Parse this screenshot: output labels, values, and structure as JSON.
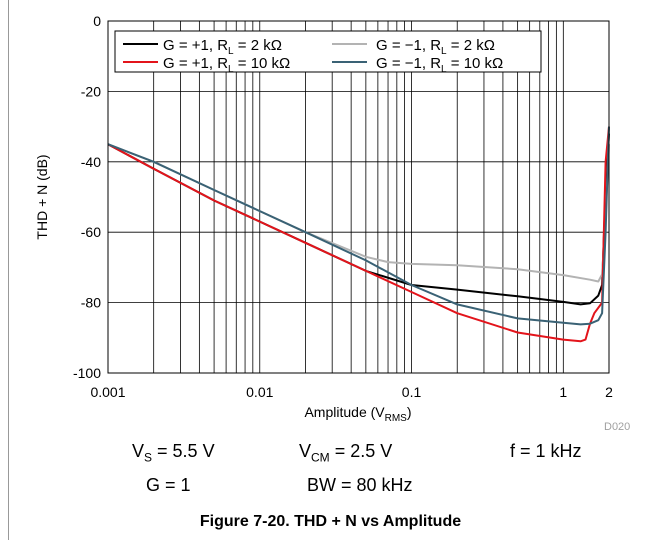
{
  "chart_data": {
    "type": "line",
    "title": "",
    "xlabel": {
      "main": "Amplitude (V",
      "sub": "RMS",
      "close": ")"
    },
    "ylabel": "THD + N (dB)",
    "x_scale": "log",
    "xlim": [
      0.001,
      2
    ],
    "ylim": [
      -100,
      0
    ],
    "x_ticks": [
      {
        "value": 0.001,
        "label": "0.001"
      },
      {
        "value": 0.01,
        "label": "0.01"
      },
      {
        "value": 0.1,
        "label": "0.1"
      },
      {
        "value": 1,
        "label": "1"
      },
      {
        "value": 2,
        "label": "2"
      }
    ],
    "y_ticks": [
      {
        "value": 0,
        "label": "0"
      },
      {
        "value": -20,
        "label": "-20"
      },
      {
        "value": -40,
        "label": "-40"
      },
      {
        "value": -60,
        "label": "-60"
      },
      {
        "value": -80,
        "label": "-80"
      },
      {
        "value": -100,
        "label": "-100"
      }
    ],
    "grid": true,
    "legend_position": "top-center",
    "figure_id": "D020",
    "series": [
      {
        "key": "s1",
        "color": "#000000",
        "label": {
          "a": "G = +1, R",
          "sub": "L",
          "b": " = 2 kΩ"
        },
        "x": [
          0.001,
          0.002,
          0.005,
          0.01,
          0.02,
          0.05,
          0.1,
          0.2,
          0.5,
          1,
          1.3,
          1.5,
          1.7,
          1.8,
          1.9,
          2.0
        ],
        "y": [
          -35,
          -42,
          -51,
          -57,
          -63,
          -71,
          -75,
          -76.3,
          -78.2,
          -79.8,
          -80.5,
          -80.2,
          -78,
          -75,
          -48,
          -32
        ]
      },
      {
        "key": "s2",
        "color": "#b3b3b3",
        "label": {
          "a": "G = −1, R",
          "sub": "L",
          "b": " = 2 kΩ"
        },
        "x": [
          0.001,
          0.002,
          0.005,
          0.01,
          0.02,
          0.05,
          0.07,
          0.1,
          0.2,
          0.5,
          1,
          1.5,
          1.7,
          1.8,
          1.9,
          2.0
        ],
        "y": [
          -35,
          -40,
          -48,
          -54,
          -60,
          -67,
          -68.5,
          -69,
          -69.4,
          -70.5,
          -72.2,
          -73.5,
          -74,
          -72,
          -55,
          -35
        ]
      },
      {
        "key": "s3",
        "color": "#e3141b",
        "label": {
          "a": "G = +1, R",
          "sub": "L",
          "b": " = 10 kΩ"
        },
        "x": [
          0.001,
          0.002,
          0.005,
          0.01,
          0.02,
          0.05,
          0.1,
          0.2,
          0.5,
          1,
          1.3,
          1.4,
          1.5,
          1.6,
          1.8,
          1.9,
          2.0
        ],
        "y": [
          -35,
          -42,
          -51,
          -57,
          -63,
          -71,
          -77,
          -83,
          -88.5,
          -90.5,
          -91,
          -90.5,
          -86,
          -83,
          -80,
          -40,
          -30
        ]
      },
      {
        "key": "s4",
        "color": "#3a6275",
        "label": {
          "a": "G = −1, R",
          "sub": "L",
          "b": " = 10 kΩ"
        },
        "x": [
          0.001,
          0.002,
          0.005,
          0.01,
          0.02,
          0.05,
          0.1,
          0.2,
          0.5,
          1,
          1.3,
          1.5,
          1.7,
          1.8,
          1.9,
          2.0
        ],
        "y": [
          -35,
          -40,
          -48,
          -54,
          -60,
          -68,
          -75,
          -80.5,
          -84.5,
          -85.7,
          -86.2,
          -86,
          -85,
          -83,
          -60,
          -30
        ]
      }
    ]
  },
  "conditions": {
    "vs": {
      "a": "V",
      "sub": "S",
      "b": " = 5.5 V"
    },
    "vcm": {
      "a": "V",
      "sub": "CM",
      "b": " = 2.5 V"
    },
    "f": "f = 1 kHz",
    "g": "G = 1",
    "bw": "BW = 80 kHz"
  },
  "caption": "Figure 7-20. THD + N vs Amplitude"
}
